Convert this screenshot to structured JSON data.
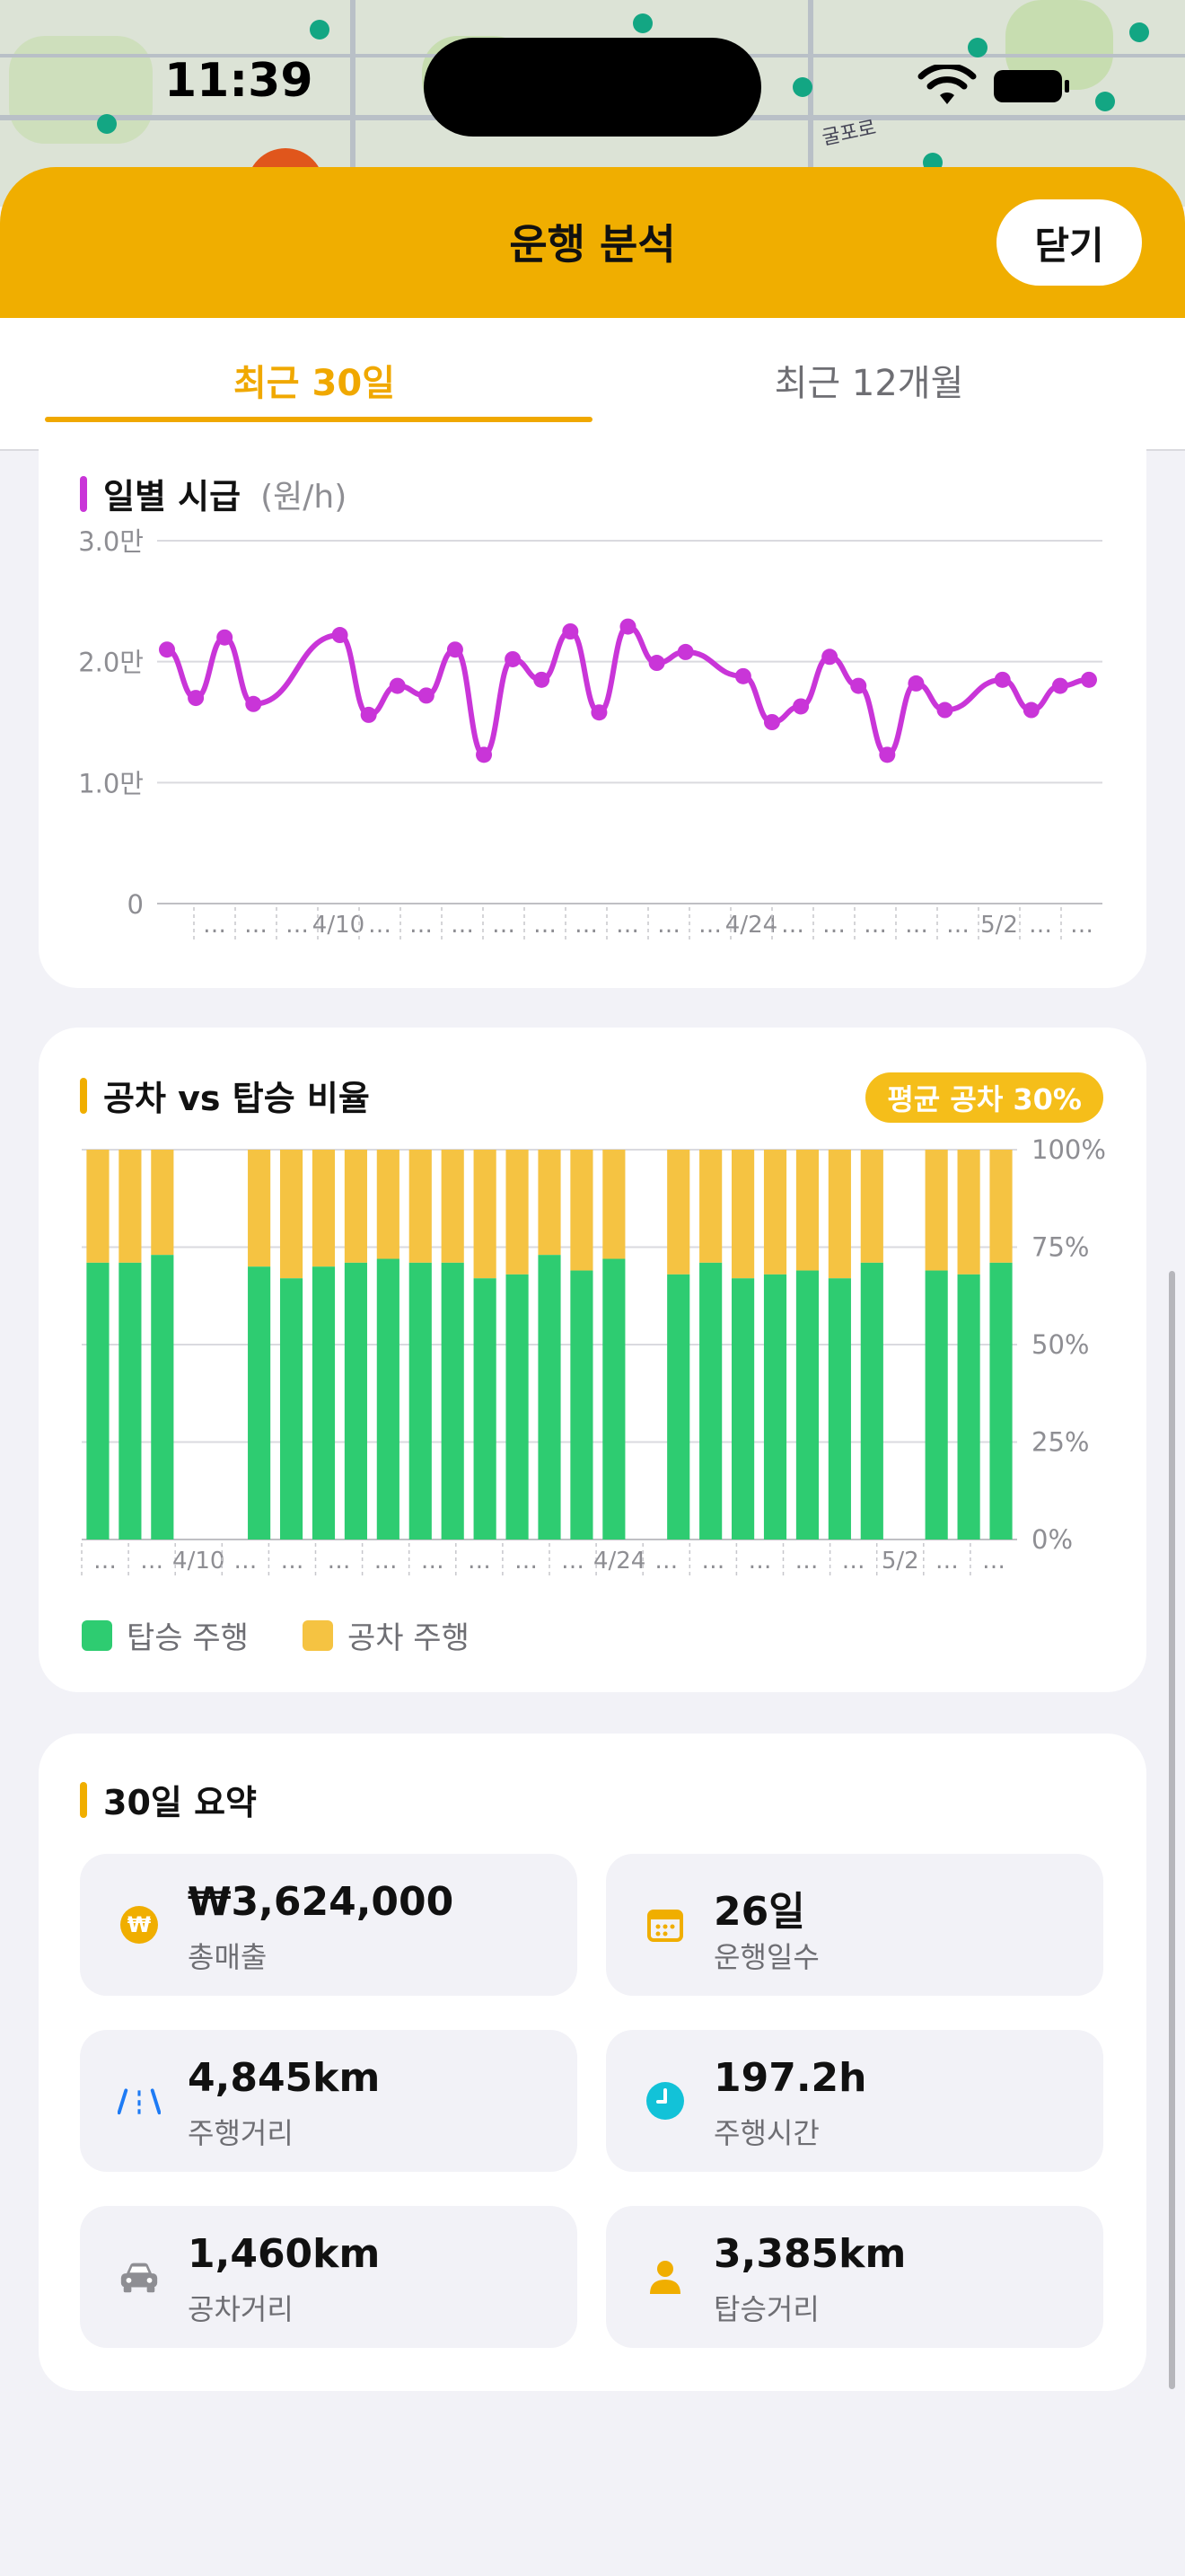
{
  "status_bar": {
    "time": "11:39"
  },
  "map": {
    "road_label": "굴포로"
  },
  "header": {
    "title": "운행 분석",
    "close_label": "닫기"
  },
  "tabs": [
    {
      "label": "최근 30일",
      "active": true
    },
    {
      "label": "최근 12개월",
      "active": false
    }
  ],
  "hourly_card": {
    "title": "일별 시급",
    "unit": "(원/h)",
    "y_ticks": [
      "3.0만",
      "2.0만",
      "1.0만",
      "0"
    ]
  },
  "ratio_card": {
    "title": "공차 vs 탑승 비율",
    "badge": "평균 공차 30%",
    "y_ticks": [
      "100%",
      "75%",
      "50%",
      "25%",
      "0%"
    ],
    "legend": [
      {
        "label": "탑승 주행",
        "color": "#2ECC71"
      },
      {
        "label": "공차 주행",
        "color": "#F5C342"
      }
    ]
  },
  "summary_card": {
    "title": "30일 요약",
    "tiles": [
      {
        "value": "₩3,624,000",
        "label": "총매출",
        "icon": "won-coin-icon"
      },
      {
        "value": "26일",
        "label": "운행일수",
        "icon": "calendar-icon"
      },
      {
        "value": "4,845km",
        "label": "주행거리",
        "icon": "road-icon"
      },
      {
        "value": "197.2h",
        "label": "주행시간",
        "icon": "clock-icon"
      },
      {
        "value": "1,460km",
        "label": "공차거리",
        "icon": "car-icon"
      },
      {
        "value": "3,385km",
        "label": "탑승거리",
        "icon": "person-icon"
      }
    ]
  },
  "colors": {
    "accent": "#F0AE00",
    "line": "#C935D8",
    "occupied": "#2ECC71",
    "empty": "#F5C342"
  },
  "chart_data": [
    {
      "type": "line",
      "title": "일별 시급",
      "ylabel": "(원/h)",
      "ylim": [
        0,
        30000
      ],
      "y_ticks": [
        "0",
        "1.0만",
        "2.0만",
        "3.0만"
      ],
      "x_labels": [
        "…",
        "…",
        "…",
        "4/10",
        "…",
        "…",
        "…",
        "…",
        "…",
        "…",
        "…",
        "…",
        "…",
        "4/24",
        "…",
        "…",
        "…",
        "…",
        "…",
        "5/2",
        "…",
        "…"
      ],
      "x": [
        0,
        1,
        2,
        3,
        6,
        7,
        8,
        9,
        10,
        11,
        12,
        13,
        14,
        15,
        16,
        17,
        18,
        20,
        21,
        22,
        23,
        24,
        25,
        26,
        27,
        29,
        30,
        31,
        32
      ],
      "values": [
        21000,
        17000,
        22000,
        16500,
        22200,
        15600,
        18000,
        17200,
        21000,
        12300,
        20200,
        18500,
        22500,
        15800,
        22900,
        19900,
        20800,
        18800,
        15000,
        16300,
        20400,
        18000,
        12300,
        18200,
        16000,
        18500,
        16000,
        18000,
        18500
      ]
    },
    {
      "type": "bar",
      "title": "공차 vs 탑승 비율",
      "ylim": [
        0,
        100
      ],
      "y_ticks": [
        "0%",
        "25%",
        "50%",
        "75%",
        "100%"
      ],
      "x_labels": [
        "…",
        "…",
        "4/10",
        "…",
        "…",
        "…",
        "…",
        "…",
        "…",
        "…",
        "…",
        "4/24",
        "…",
        "…",
        "…",
        "…",
        "…",
        "5/2",
        "…",
        "…"
      ],
      "series": [
        {
          "name": "탑승 주행",
          "values": [
            71,
            71,
            73,
            null,
            null,
            70,
            67,
            70,
            71,
            72,
            71,
            71,
            67,
            68,
            73,
            69,
            72,
            null,
            68,
            71,
            67,
            68,
            69,
            67,
            71,
            null,
            69,
            68,
            71
          ]
        },
        {
          "name": "공차 주행",
          "values": [
            29,
            29,
            27,
            null,
            null,
            30,
            33,
            30,
            29,
            28,
            29,
            29,
            33,
            32,
            27,
            31,
            28,
            null,
            32,
            29,
            33,
            32,
            31,
            33,
            29,
            null,
            31,
            32,
            29
          ]
        }
      ],
      "annotation": "평균 공차 30%"
    }
  ]
}
